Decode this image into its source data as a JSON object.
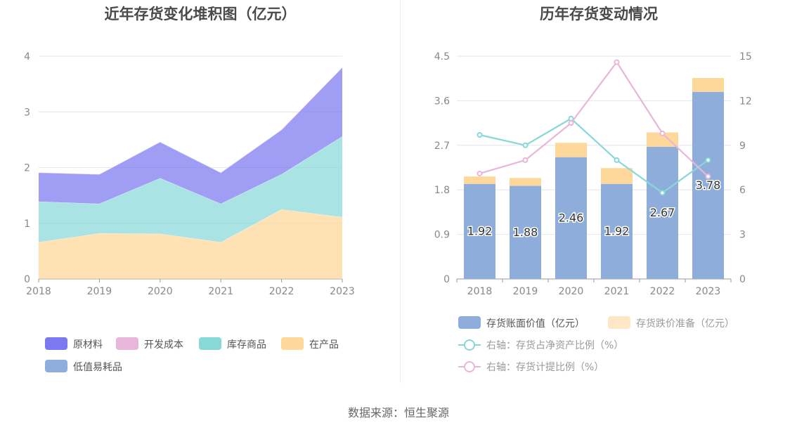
{
  "left_chart": {
    "title": "近年存货变化堆积图（亿元）"
  },
  "right_chart": {
    "title": "历年存货变动情况"
  },
  "source": "数据来源：恒生聚源",
  "chart_data": [
    {
      "type": "area",
      "title": "近年存货变化堆积图（亿元）",
      "x": [
        "2018",
        "2019",
        "2020",
        "2021",
        "2022",
        "2023"
      ],
      "ylim": [
        0,
        4
      ],
      "yticks": [
        "0",
        "1",
        "2",
        "3",
        "4"
      ],
      "stacked": true,
      "grid": true,
      "legend_position": "bottom",
      "series": [
        {
          "name": "在产品",
          "color": "#fdd89a",
          "values": [
            0.66,
            0.82,
            0.81,
            0.66,
            1.25,
            1.11
          ]
        },
        {
          "name": "库存商品",
          "color": "#88d8d8",
          "values": [
            0.73,
            0.53,
            1.0,
            0.69,
            0.63,
            1.45
          ]
        },
        {
          "name": "开发成本",
          "color": "#e9b6d9",
          "values": [
            0,
            0,
            0,
            0,
            0,
            0
          ]
        },
        {
          "name": "原材料",
          "color": "#7b79f0",
          "values": [
            0.52,
            0.53,
            0.65,
            0.56,
            0.8,
            1.24
          ]
        },
        {
          "name": "低值易耗品",
          "color": "#8eaee0",
          "values": [
            0,
            0,
            0,
            0,
            0,
            0
          ]
        }
      ],
      "legend_order": [
        "原材料",
        "开发成本",
        "库存商品",
        "在产品",
        "低值易耗品"
      ]
    },
    {
      "type": "bar",
      "title": "历年存货变动情况",
      "categories": [
        "2018",
        "2019",
        "2020",
        "2021",
        "2022",
        "2023"
      ],
      "ylim": [
        0,
        4.5
      ],
      "yticks": [
        "0",
        "0.9",
        "1.8",
        "2.7",
        "3.6",
        "4.5"
      ],
      "y2lim": [
        0,
        15
      ],
      "y2ticks": [
        "0",
        "3",
        "6",
        "9",
        "12",
        "15"
      ],
      "stacked": true,
      "grid": true,
      "legend_position": "bottom",
      "series": [
        {
          "name": "存货账面价值（亿元）",
          "color": "#8eaddb",
          "axis": "left",
          "values": [
            1.92,
            1.88,
            2.46,
            1.92,
            2.67,
            3.78
          ],
          "labels": [
            "1.92",
            "1.88",
            "2.46",
            "1.92",
            "2.67",
            "3.78"
          ]
        },
        {
          "name": "存货跌价准备（亿元）",
          "color": "#fdd89a",
          "axis": "left",
          "values": [
            0.15,
            0.16,
            0.29,
            0.32,
            0.29,
            0.28
          ]
        },
        {
          "name": "右轴：存货占净资产比例（%）",
          "color": "#88d8d8",
          "axis": "right",
          "line": true,
          "values": [
            9.7,
            9.0,
            10.8,
            8.0,
            5.8,
            8.0
          ]
        },
        {
          "name": "右轴：存货计提比例（%）",
          "color": "#e9b6d9",
          "axis": "right",
          "line": true,
          "values": [
            7.1,
            8.0,
            10.5,
            14.6,
            9.8,
            6.9
          ]
        }
      ]
    }
  ]
}
